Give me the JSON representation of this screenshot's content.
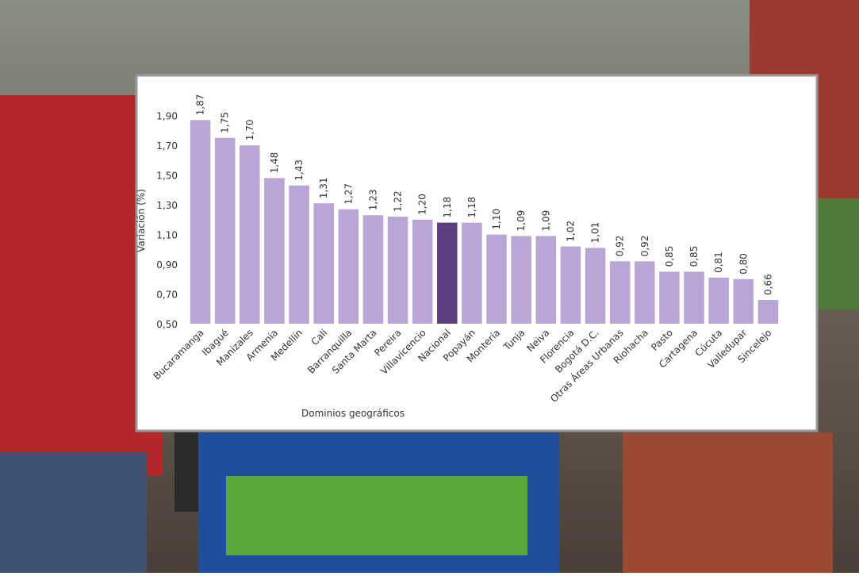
{
  "chart_data": {
    "type": "bar",
    "x_label": "Dominios geográficos",
    "y_label": "Variación (%)",
    "categories": [
      "Bucaramanga",
      "Ibagué",
      "Manizales",
      "Armenia",
      "Medellín",
      "Cali",
      "Barranquilla",
      "Santa Marta",
      "Pereira",
      "Villavicencio",
      "Nacional",
      "Popayán",
      "Montería",
      "Tunja",
      "Neiva",
      "Florencia",
      "Bogotá D.C.",
      "Otras Áreas Urbanas",
      "Riohacha",
      "Pasto",
      "Cartagena",
      "Cúcuta",
      "Valledupar",
      "Sincelejo"
    ],
    "values": [
      1.87,
      1.75,
      1.7,
      1.48,
      1.43,
      1.31,
      1.27,
      1.23,
      1.22,
      1.2,
      1.18,
      1.18,
      1.1,
      1.09,
      1.09,
      1.02,
      1.01,
      0.92,
      0.92,
      0.85,
      0.85,
      0.81,
      0.8,
      0.66
    ],
    "value_labels": [
      "1,87",
      "1,75",
      "1,70",
      "1,48",
      "1,43",
      "1,31",
      "1,27",
      "1,23",
      "1,22",
      "1,20",
      "1,18",
      "1,18",
      "1,10",
      "1,09",
      "1,09",
      "1,02",
      "1,01",
      "0,92",
      "0,92",
      "0,85",
      "0,85",
      "0,81",
      "0,80",
      "0,66"
    ],
    "colors": [
      "#b9a6d6",
      "#b9a6d6",
      "#b9a6d6",
      "#b9a6d6",
      "#b9a6d6",
      "#b9a6d6",
      "#b9a6d6",
      "#b9a6d6",
      "#b9a6d6",
      "#b9a6d6",
      "#5c3f80",
      "#b9a6d6",
      "#b9a6d6",
      "#b9a6d6",
      "#b9a6d6",
      "#b9a6d6",
      "#b9a6d6",
      "#b9a6d6",
      "#b9a6d6",
      "#b9a6d6",
      "#b9a6d6",
      "#b9a6d6",
      "#b9a6d6",
      "#b9a6d6"
    ],
    "ylim": [
      0.5,
      2.0
    ],
    "yticks": [
      {
        "value": 0.5,
        "label": "0,50"
      },
      {
        "value": 0.7,
        "label": "0,70"
      },
      {
        "value": 0.9,
        "label": "0,90"
      },
      {
        "value": 1.1,
        "label": "1,10"
      },
      {
        "value": 1.3,
        "label": "1,30"
      },
      {
        "value": 1.5,
        "label": "1,50"
      },
      {
        "value": 1.7,
        "label": "1,70"
      },
      {
        "value": 1.9,
        "label": "1,90"
      }
    ],
    "grid": false
  }
}
